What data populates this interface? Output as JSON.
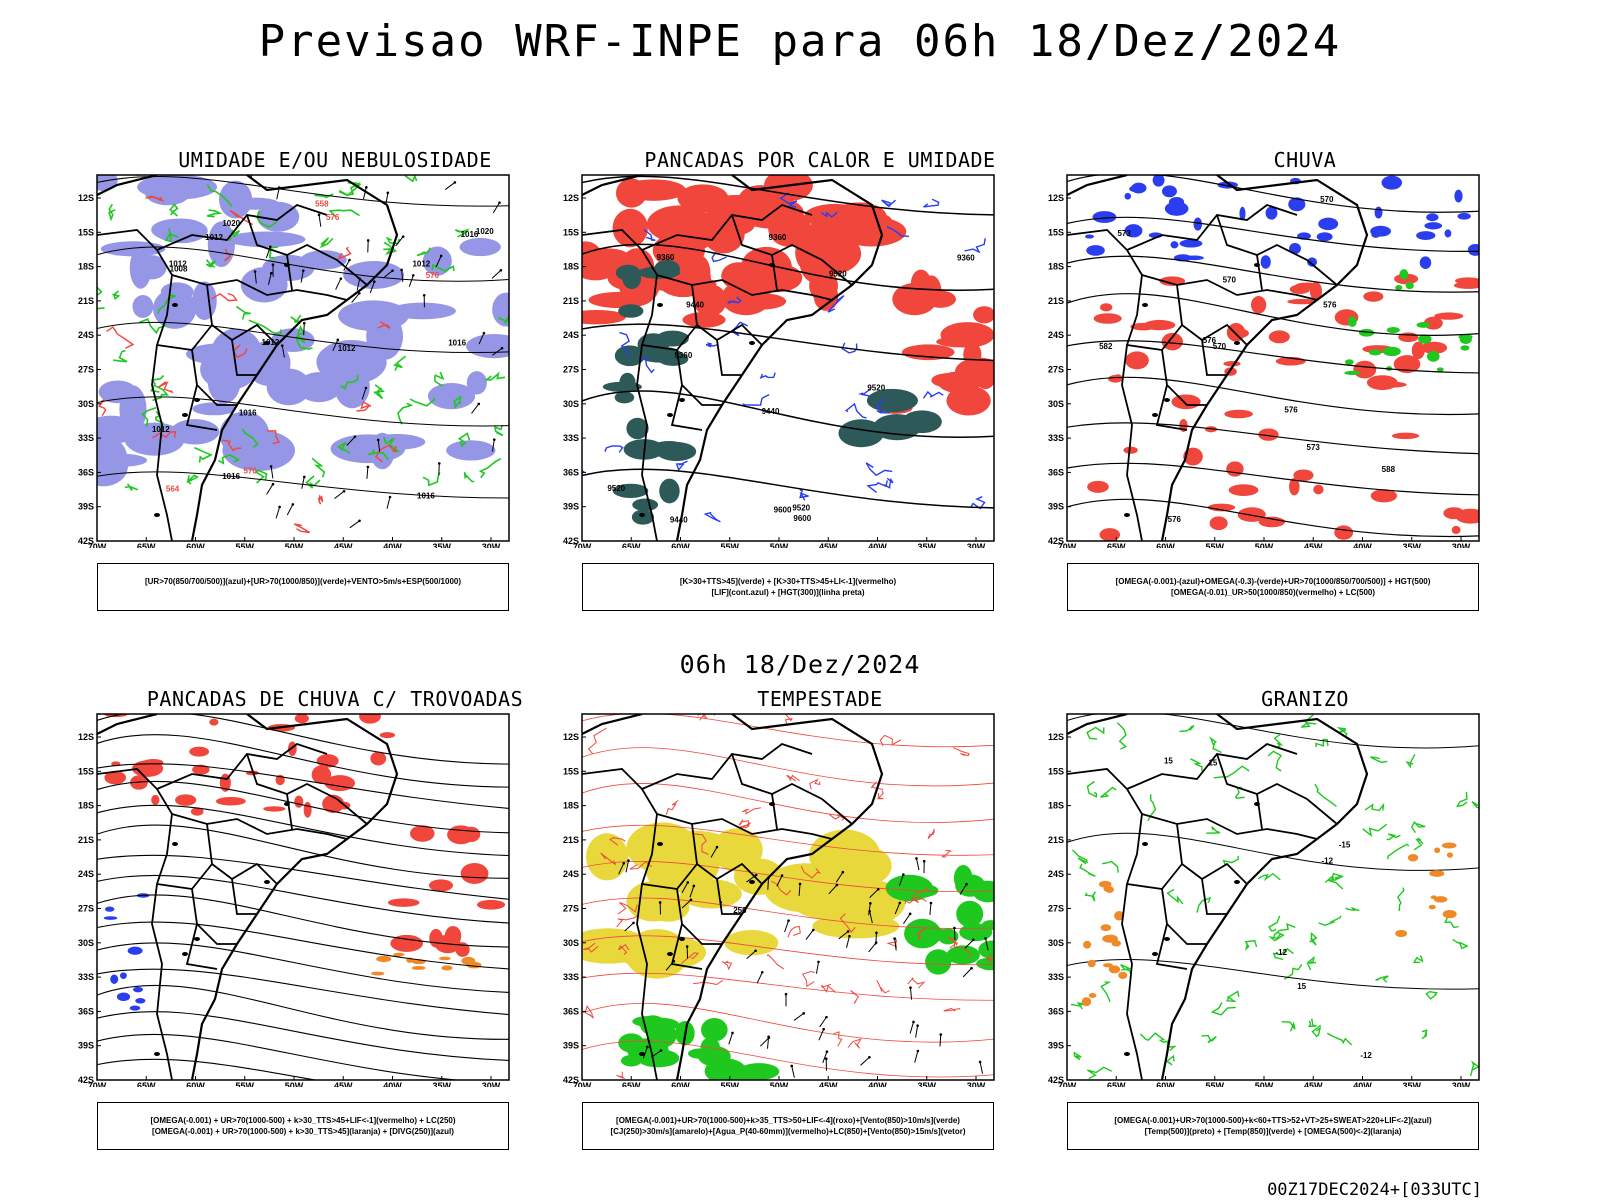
{
  "main_title": "Previsao WRF-INPE  para 06h 18/Dez/2024",
  "mid_title": "06h 18/Dez/2024",
  "footer": "00Z17DEC2024+[033UTC]",
  "axes": {
    "lat_labels": [
      "12S",
      "15S",
      "18S",
      "21S",
      "24S",
      "27S",
      "30S",
      "33S",
      "36S",
      "39S",
      "42S"
    ],
    "lon_labels": [
      "70W",
      "65W",
      "60W",
      "55W",
      "50W",
      "45W",
      "40W",
      "35W",
      "30W"
    ]
  },
  "colors": {
    "red": "#f0463c",
    "blue": "#2a3ef0",
    "green": "#1ec81e",
    "lavender": "#9696e6",
    "darkteal": "#2d5a58",
    "yellow": "#e8d83c",
    "orange": "#f08a28",
    "black": "#000000"
  },
  "panels": [
    {
      "id": "umidade",
      "title": "UMIDADE E/OU NEBULOSIDADE",
      "legend": [
        "[UR>70(850/700/500)](azul)+[UR>70(1000/850)](verde)+VENTO>5m/s+ESP(500/1000)"
      ],
      "contour_labels": [
        "1012",
        "1016",
        "1012",
        "1016",
        "1012",
        "1008",
        "1012",
        "1016",
        "1016",
        "1016",
        "1012",
        "1020",
        "1012",
        "1020",
        "570",
        "576",
        "564",
        "570",
        "558"
      ]
    },
    {
      "id": "pancadas-calor",
      "title": "PANCADAS POR CALOR E UMIDADE",
      "legend": [
        "[K>30+TTS>45](verde) + [K>30+TTS>45+LI<-1](vermelho)",
        "[LIF](cont.azul) + [HGT(300)](linha preta)"
      ],
      "contour_labels": [
        "9600",
        "9600",
        "9520",
        "9520",
        "9520",
        "9440",
        "9520",
        "9440",
        "9440",
        "9360",
        "9360",
        "9360",
        "9360"
      ]
    },
    {
      "id": "chuva",
      "title": "CHUVA",
      "legend": [
        "[OMEGA(-0.001)-(azul)+OMEGA(-0.3)-(verde)+UR>70(1000/850/700/500)] + HGT(500)",
        "[OMEGA(-0.01)_UR>50(1000/850)(vermelho) + LC(500)"
      ],
      "contour_labels": [
        "588",
        "582",
        "576",
        "576",
        "570",
        "576",
        "570",
        "573",
        "576",
        "570",
        "573"
      ]
    },
    {
      "id": "pancadas-trovoadas",
      "title": "PANCADAS DE CHUVA C/ TROVOADAS",
      "legend": [
        "[OMEGA(-0.001) + UR>70(1000-500) + k>30_TTS>45+LIF<-1](vermelho) + LC(250)",
        "[OMEGA(-0.001) + UR>70(1000-500) + k>30_TTS>45](laranja) + [DIVG(250)](azul)"
      ],
      "contour_labels": []
    },
    {
      "id": "tempestade",
      "title": "TEMPESTADE",
      "legend": [
        "[OMEGA(-0.001)+UR>70(1000-500)+k>35_TTS>50+LIF<-4](roxo)+[Vento(850)>10m/s](verde)",
        "[CJ(250)>30m/s](amarelo)+[Agua_P(40-60mm)](vermelho)+LC(850)+[Vento(850)>15m/s](vetor)"
      ],
      "contour_labels": [
        "250"
      ]
    },
    {
      "id": "granizo",
      "title": "GRANIZO",
      "legend": [
        "[OMEGA(-0.001)+UR>70(1000-500)+k<60+TTS>52+VT>25+SWEAT>220+LIF<-2](azul)",
        "[Temp(500)](preto) + [Temp(850)](verde) + [OMEGA(500)<-2](laranja)"
      ],
      "contour_labels": [
        "-12",
        "-12",
        "-12",
        "15",
        "15",
        "15",
        "-15"
      ]
    }
  ]
}
